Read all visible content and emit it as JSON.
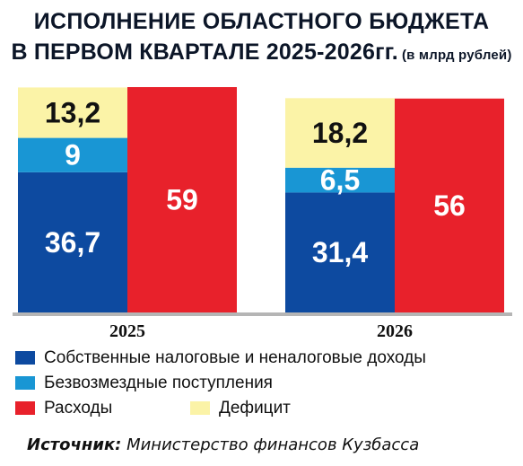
{
  "title_line1": "ИСПОЛНЕНИЕ ОБЛАСТНОГО БЮДЖЕТА",
  "title_line2_main": "В ПЕРВОМ КВАРТАЛЕ 2025-2026гг.",
  "title_line2_unit": "(в млрд рублей)",
  "colors": {
    "own_revenue": "#0d4aa0",
    "transfers": "#1996d4",
    "deficit": "#fbf3a7",
    "expenses": "#e8212b",
    "axis": "#b5b5b5"
  },
  "chart_data": {
    "type": "bar",
    "stacked": true,
    "categories": [
      "2025",
      "2026"
    ],
    "series": [
      {
        "name": "Собственные налоговые и неналоговые доходы",
        "stack": "revenue",
        "values": [
          36.7,
          31.4
        ],
        "labels": [
          "36,7",
          "31,4"
        ],
        "color": "#0d4aa0",
        "label_color": "#ffffff"
      },
      {
        "name": "Безвозмездные поступления",
        "stack": "revenue",
        "values": [
          9,
          6.5
        ],
        "labels": [
          "9",
          "6,5"
        ],
        "color": "#1996d4",
        "label_color": "#ffffff"
      },
      {
        "name": "Дефицит",
        "stack": "revenue",
        "values": [
          13.2,
          18.2
        ],
        "labels": [
          "13,2",
          "18,2"
        ],
        "color": "#fbf3a7",
        "label_color": "#111111"
      },
      {
        "name": "Расходы",
        "stack": "expenses",
        "values": [
          59,
          56
        ],
        "labels": [
          "59",
          "56"
        ],
        "color": "#e8212b",
        "label_color": "#ffffff"
      }
    ],
    "ylim": [
      0,
      59
    ],
    "grid": false,
    "legend_position": "bottom"
  },
  "legend": [
    {
      "label": "Собственные налоговые и неналоговые доходы",
      "color": "#0d4aa0"
    },
    {
      "label": "Безвозмездные поступления",
      "color": "#1996d4"
    },
    {
      "label": "Расходы",
      "color": "#e8212b"
    },
    {
      "label": "Дефицит",
      "color": "#fbf3a7"
    }
  ],
  "source_label": "Источник:",
  "source_text": " Министерство финансов Кузбасса"
}
